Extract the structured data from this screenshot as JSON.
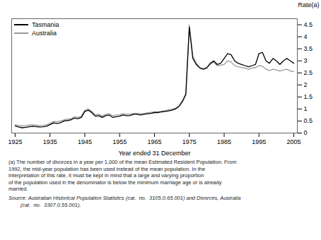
{
  "chart_data": {
    "type": "line",
    "xlabel": "Year ended 31 December",
    "ylabel": "Rate(a)",
    "annotations": [
      "(a) The number of divorces in a year per 1,000 of the mean Estimated Resident Population. From\n1992, the mid-year population has been used instead of the mean population. In the\ninterpretation of this rate, it must be kept in mind that a large and varying proportion\nof the population used in the denominator is below the minimum marriage age or is already\nmarried.",
      "Source: Australian Historical Population Statistics (cat.  no.  3105.0.65.001) and Divorces, Australia\n        (cat.  no.  3307.0.55.001)."
    ],
    "legend": "upper left",
    "xlim": [
      1924,
      2006
    ],
    "xticks": [
      1925,
      1935,
      1945,
      1955,
      1965,
      1975,
      1985,
      1995,
      2005
    ],
    "ylim": [
      0,
      4.75
    ],
    "yticks": [
      0,
      0.5,
      1.0,
      1.5,
      2.0,
      2.5,
      3.0,
      3.5,
      4.0,
      4.5
    ],
    "x": [
      1925,
      1926,
      1927,
      1928,
      1929,
      1930,
      1931,
      1932,
      1933,
      1934,
      1935,
      1936,
      1937,
      1938,
      1939,
      1940,
      1941,
      1942,
      1943,
      1944,
      1945,
      1946,
      1947,
      1948,
      1949,
      1950,
      1951,
      1952,
      1953,
      1954,
      1955,
      1956,
      1957,
      1958,
      1959,
      1960,
      1961,
      1962,
      1963,
      1964,
      1965,
      1966,
      1967,
      1968,
      1969,
      1970,
      1971,
      1972,
      1973,
      1974,
      1975,
      1976,
      1977,
      1978,
      1979,
      1980,
      1981,
      1982,
      1983,
      1984,
      1985,
      1986,
      1987,
      1988,
      1989,
      1990,
      1991,
      1992,
      1993,
      1994,
      1995,
      1996,
      1997,
      1998,
      1999,
      2000,
      2001,
      2002,
      2003,
      2004,
      2005
    ],
    "series": [
      {
        "name": "Tasmania",
        "color": "#000000",
        "values": [
          0.3,
          0.25,
          0.22,
          0.24,
          0.26,
          0.28,
          0.27,
          0.25,
          0.26,
          0.28,
          0.35,
          0.42,
          0.4,
          0.43,
          0.5,
          0.52,
          0.55,
          0.62,
          0.6,
          0.65,
          0.9,
          0.95,
          0.85,
          0.7,
          0.72,
          0.65,
          0.72,
          0.75,
          0.65,
          0.68,
          0.7,
          0.75,
          0.72,
          0.73,
          0.78,
          0.78,
          0.75,
          0.78,
          0.8,
          0.82,
          0.85,
          0.85,
          0.88,
          0.9,
          0.92,
          0.95,
          1.0,
          1.1,
          1.3,
          1.6,
          4.4,
          3.1,
          2.85,
          2.7,
          2.65,
          2.7,
          2.9,
          3.0,
          2.85,
          2.9,
          3.1,
          3.3,
          3.25,
          3.0,
          2.9,
          2.85,
          2.8,
          2.75,
          2.8,
          2.85,
          3.3,
          3.35,
          3.0,
          2.9,
          3.1,
          3.0,
          2.85,
          3.0,
          3.1,
          3.0,
          2.9
        ]
      },
      {
        "name": "Australia",
        "color": "#999999",
        "values": [
          0.35,
          0.32,
          0.3,
          0.31,
          0.33,
          0.34,
          0.33,
          0.31,
          0.32,
          0.34,
          0.4,
          0.48,
          0.47,
          0.5,
          0.55,
          0.58,
          0.6,
          0.68,
          0.65,
          0.7,
          0.95,
          1.0,
          0.9,
          0.75,
          0.78,
          0.7,
          0.78,
          0.8,
          0.72,
          0.75,
          0.76,
          0.8,
          0.78,
          0.78,
          0.82,
          0.82,
          0.8,
          0.82,
          0.84,
          0.86,
          0.88,
          0.88,
          0.9,
          0.93,
          0.96,
          0.99,
          1.03,
          1.12,
          1.35,
          1.65,
          4.5,
          3.2,
          2.9,
          2.72,
          2.68,
          2.72,
          2.85,
          2.95,
          2.8,
          2.82,
          2.85,
          3.0,
          2.95,
          2.8,
          2.75,
          2.72,
          2.7,
          2.65,
          2.7,
          2.72,
          2.8,
          2.78,
          2.65,
          2.6,
          2.65,
          2.62,
          2.58,
          2.62,
          2.65,
          2.58,
          2.55
        ]
      }
    ]
  }
}
